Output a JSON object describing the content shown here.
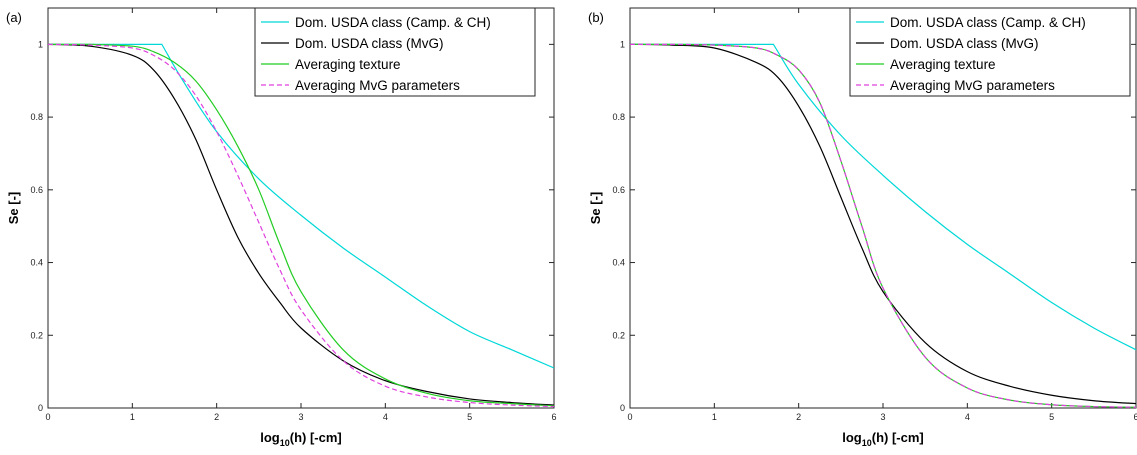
{
  "chart_data": [
    {
      "type": "line",
      "panel_label": "(a)",
      "xlabel_main": "log",
      "xlabel_sub": "10",
      "xlabel_rest": "(h) [-cm]",
      "ylabel": "Se [-]",
      "xlim": [
        0,
        6
      ],
      "ylim": [
        0,
        1.1
      ],
      "xticks": [
        "0",
        "1",
        "2",
        "3",
        "4",
        "5",
        "6"
      ],
      "yticks": [
        "0",
        "0.2",
        "0.4",
        "0.6",
        "0.8",
        "1"
      ],
      "legend_position": "top-right",
      "series": [
        {
          "name": "Dom. USDA class (Camp. & CH)",
          "color": "#00d8d8",
          "dash": "solid",
          "x": [
            0,
            0.5,
            1.0,
            1.35,
            1.6,
            2.0,
            2.5,
            3.0,
            3.5,
            4.0,
            4.5,
            5.0,
            5.5,
            6.0
          ],
          "y": [
            1,
            1,
            1,
            1,
            0.9,
            0.76,
            0.63,
            0.53,
            0.44,
            0.36,
            0.28,
            0.21,
            0.16,
            0.11
          ]
        },
        {
          "name": "Dom. USDA class (MvG)",
          "color": "#000000",
          "dash": "solid",
          "x": [
            0,
            0.5,
            1.0,
            1.25,
            1.5,
            1.75,
            2.0,
            2.25,
            2.5,
            2.75,
            3.0,
            3.5,
            4.0,
            4.5,
            5.0,
            5.5,
            6.0
          ],
          "y": [
            1,
            0.995,
            0.97,
            0.93,
            0.85,
            0.74,
            0.6,
            0.47,
            0.37,
            0.29,
            0.22,
            0.13,
            0.075,
            0.045,
            0.025,
            0.015,
            0.008
          ]
        },
        {
          "name": "Averaging texture",
          "color": "#22cc22",
          "dash": "solid",
          "x": [
            0,
            0.5,
            1.0,
            1.25,
            1.5,
            1.75,
            2.0,
            2.25,
            2.5,
            2.75,
            3.0,
            3.5,
            4.0,
            4.5,
            5.0,
            5.5,
            6.0
          ],
          "y": [
            1,
            1,
            0.995,
            0.98,
            0.95,
            0.9,
            0.82,
            0.72,
            0.6,
            0.45,
            0.32,
            0.16,
            0.08,
            0.04,
            0.02,
            0.012,
            0.006
          ]
        },
        {
          "name": "Averaging MvG parameters",
          "color": "#e040e0",
          "dash": "dashed",
          "x": [
            0,
            0.5,
            1.0,
            1.25,
            1.5,
            1.75,
            2.0,
            2.25,
            2.5,
            2.75,
            3.0,
            3.5,
            4.0,
            4.5,
            5.0,
            5.5,
            6.0
          ],
          "y": [
            1,
            0.998,
            0.99,
            0.97,
            0.93,
            0.86,
            0.76,
            0.64,
            0.51,
            0.38,
            0.27,
            0.13,
            0.06,
            0.03,
            0.015,
            0.008,
            0.004
          ]
        }
      ]
    },
    {
      "type": "line",
      "panel_label": "(b)",
      "xlabel_main": "log",
      "xlabel_sub": "10",
      "xlabel_rest": "(h) [-cm]",
      "ylabel": "Se [-]",
      "xlim": [
        0,
        6
      ],
      "ylim": [
        0,
        1.1
      ],
      "xticks": [
        "0",
        "1",
        "2",
        "3",
        "4",
        "5",
        "6"
      ],
      "yticks": [
        "0",
        "0.2",
        "0.4",
        "0.6",
        "0.8",
        "1"
      ],
      "legend_position": "top-right",
      "series": [
        {
          "name": "Dom. USDA class (Camp. & CH)",
          "color": "#00d8d8",
          "dash": "solid",
          "x": [
            0,
            0.5,
            1.0,
            1.5,
            1.7,
            2.0,
            2.5,
            3.0,
            3.5,
            4.0,
            4.5,
            5.0,
            5.5,
            6.0
          ],
          "y": [
            1,
            1,
            1,
            1,
            1,
            0.89,
            0.75,
            0.64,
            0.54,
            0.45,
            0.37,
            0.29,
            0.22,
            0.16
          ]
        },
        {
          "name": "Dom. USDA class (MvG)",
          "color": "#000000",
          "dash": "solid",
          "x": [
            0,
            0.5,
            1.0,
            1.5,
            1.75,
            2.0,
            2.25,
            2.5,
            2.75,
            3.0,
            3.5,
            4.0,
            4.5,
            5.0,
            5.5,
            6.0
          ],
          "y": [
            1,
            0.998,
            0.99,
            0.95,
            0.91,
            0.83,
            0.72,
            0.58,
            0.44,
            0.32,
            0.18,
            0.1,
            0.06,
            0.035,
            0.02,
            0.012
          ]
        },
        {
          "name": "Averaging texture",
          "color": "#22cc22",
          "dash": "solid",
          "x": [
            0,
            0.5,
            1.0,
            1.5,
            1.75,
            2.0,
            2.25,
            2.5,
            2.75,
            3.0,
            3.5,
            4.0,
            4.5,
            5.0,
            5.5,
            6.0
          ],
          "y": [
            1,
            1,
            0.998,
            0.99,
            0.97,
            0.93,
            0.84,
            0.68,
            0.5,
            0.33,
            0.14,
            0.055,
            0.022,
            0.009,
            0.004,
            0.002
          ]
        },
        {
          "name": "Averaging MvG parameters",
          "color": "#e040e0",
          "dash": "dashed",
          "x": [
            0,
            0.5,
            1.0,
            1.5,
            1.75,
            2.0,
            2.25,
            2.5,
            2.75,
            3.0,
            3.5,
            4.0,
            4.5,
            5.0,
            5.5,
            6.0
          ],
          "y": [
            1,
            1,
            0.998,
            0.99,
            0.97,
            0.93,
            0.84,
            0.68,
            0.5,
            0.33,
            0.14,
            0.055,
            0.022,
            0.009,
            0.004,
            0.002
          ]
        }
      ]
    }
  ]
}
